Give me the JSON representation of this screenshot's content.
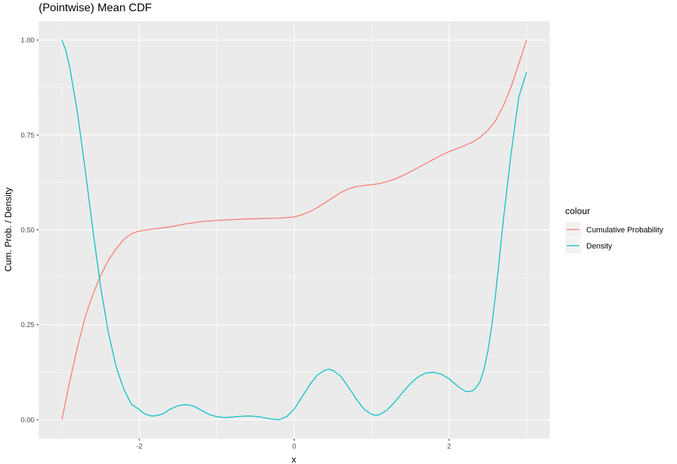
{
  "chart_data": {
    "type": "line",
    "title": "(Pointwise) Mean CDF",
    "xlabel": "x",
    "ylabel": "Cum. Prob. / Density",
    "xlim": [
      -3.3,
      3.3
    ],
    "ylim": [
      -0.05,
      1.05
    ],
    "x_ticks": [
      -2,
      0,
      2
    ],
    "x_tick_labels": [
      "-2",
      "0",
      "2"
    ],
    "y_ticks": [
      0,
      0.25,
      0.5,
      0.75,
      1.0
    ],
    "y_tick_labels": [
      "0.00",
      "0.25",
      "0.50",
      "0.75",
      "1.00"
    ],
    "grid": true,
    "legend": {
      "title": "colour",
      "position": "right"
    },
    "series": [
      {
        "name": "Cumulative Probability",
        "color": "#F8766D",
        "x": [
          -3.0,
          -2.9,
          -2.8,
          -2.7,
          -2.6,
          -2.5,
          -2.4,
          -2.3,
          -2.2,
          -2.1,
          -2.0,
          -1.9,
          -1.8,
          -1.6,
          -1.4,
          -1.2,
          -1.0,
          -0.8,
          -0.6,
          -0.4,
          -0.2,
          0.0,
          0.1,
          0.2,
          0.3,
          0.4,
          0.5,
          0.6,
          0.7,
          0.8,
          0.9,
          1.0,
          1.1,
          1.2,
          1.3,
          1.4,
          1.5,
          1.6,
          1.7,
          1.8,
          1.9,
          2.0,
          2.1,
          2.2,
          2.3,
          2.4,
          2.5,
          2.6,
          2.7,
          2.8,
          2.9,
          3.0
        ],
        "y": [
          0.0,
          0.1,
          0.19,
          0.27,
          0.33,
          0.38,
          0.42,
          0.45,
          0.475,
          0.49,
          0.497,
          0.5,
          0.503,
          0.508,
          0.516,
          0.522,
          0.525,
          0.527,
          0.529,
          0.53,
          0.531,
          0.534,
          0.54,
          0.548,
          0.559,
          0.572,
          0.585,
          0.598,
          0.608,
          0.614,
          0.617,
          0.619,
          0.622,
          0.627,
          0.634,
          0.643,
          0.653,
          0.664,
          0.675,
          0.686,
          0.697,
          0.706,
          0.714,
          0.722,
          0.731,
          0.744,
          0.762,
          0.788,
          0.826,
          0.876,
          0.937,
          1.0
        ]
      },
      {
        "name": "Density",
        "color": "#00BFC4",
        "x": [
          -3.0,
          -2.95,
          -2.9,
          -2.85,
          -2.8,
          -2.7,
          -2.6,
          -2.5,
          -2.4,
          -2.3,
          -2.2,
          -2.1,
          -2.0,
          -1.95,
          -1.9,
          -1.85,
          -1.8,
          -1.7,
          -1.6,
          -1.5,
          -1.4,
          -1.3,
          -1.2,
          -1.1,
          -1.0,
          -0.9,
          -0.8,
          -0.7,
          -0.6,
          -0.5,
          -0.4,
          -0.3,
          -0.2,
          -0.1,
          0.0,
          0.1,
          0.2,
          0.3,
          0.4,
          0.45,
          0.5,
          0.6,
          0.7,
          0.8,
          0.9,
          1.0,
          1.05,
          1.1,
          1.2,
          1.3,
          1.4,
          1.5,
          1.6,
          1.7,
          1.8,
          1.9,
          2.0,
          2.1,
          2.2,
          2.25,
          2.3,
          2.35,
          2.4,
          2.45,
          2.5,
          2.55,
          2.6,
          2.65,
          2.7,
          2.8,
          2.9,
          3.0
        ],
        "y": [
          1.0,
          0.973,
          0.93,
          0.87,
          0.81,
          0.66,
          0.5,
          0.35,
          0.23,
          0.14,
          0.08,
          0.04,
          0.027,
          0.018,
          0.013,
          0.01,
          0.01,
          0.015,
          0.028,
          0.037,
          0.04,
          0.036,
          0.025,
          0.014,
          0.008,
          0.006,
          0.007,
          0.009,
          0.01,
          0.009,
          0.006,
          0.002,
          0.0,
          0.008,
          0.028,
          0.06,
          0.092,
          0.118,
          0.131,
          0.133,
          0.13,
          0.115,
          0.086,
          0.055,
          0.028,
          0.014,
          0.012,
          0.013,
          0.026,
          0.047,
          0.072,
          0.095,
          0.113,
          0.123,
          0.125,
          0.12,
          0.108,
          0.09,
          0.076,
          0.074,
          0.076,
          0.085,
          0.1,
          0.132,
          0.18,
          0.245,
          0.33,
          0.425,
          0.525,
          0.7,
          0.85,
          0.915
        ]
      }
    ]
  }
}
